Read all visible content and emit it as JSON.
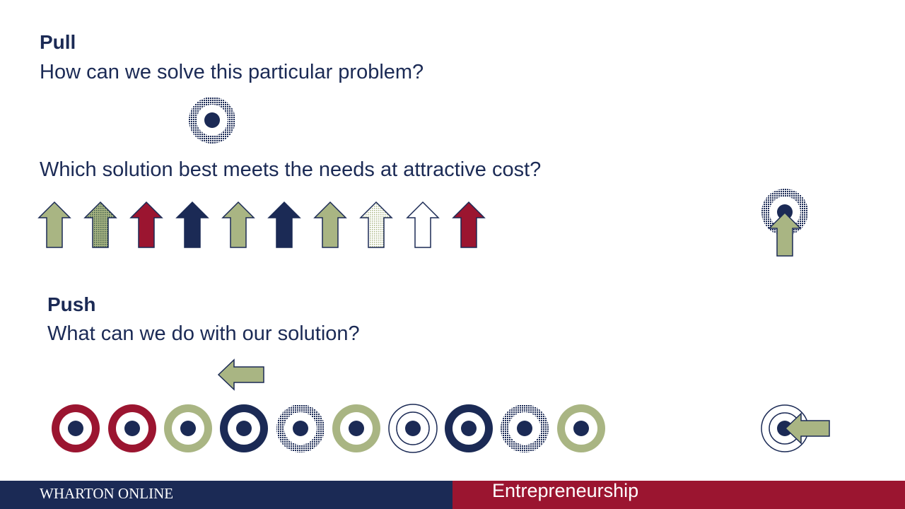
{
  "pull": {
    "heading": "Pull",
    "question": "How can we solve this particular problem?",
    "solution_question": "Which solution best meets the needs at attractive cost?"
  },
  "push": {
    "heading": "Push",
    "question": "What can we do with our solution?"
  },
  "footer": {
    "brand": "WHARTON ONLINE",
    "course": "Entrepreneurship"
  },
  "colors": {
    "navy": "#1b2a55",
    "crimson": "#9b1530",
    "sage": "#a9b583",
    "sage_light": "#d4dab8",
    "white": "#ffffff"
  },
  "arrow_colors": [
    "sage",
    "grey-green",
    "crimson",
    "navy",
    "sage",
    "navy",
    "sage",
    "sage-light",
    "white",
    "crimson"
  ],
  "target_colors": [
    "crimson",
    "crimson",
    "sage",
    "navy",
    "grey-navy",
    "sage",
    "white",
    "navy",
    "navy",
    "sage"
  ]
}
